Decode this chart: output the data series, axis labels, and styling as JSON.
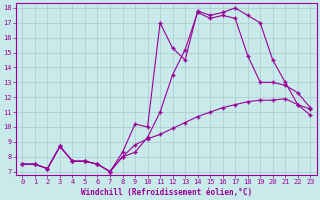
{
  "xlabel": "Windchill (Refroidissement éolien,°C)",
  "background_color": "#c8eaea",
  "grid_color": "#b0d0d0",
  "line_color": "#990099",
  "xlim": [
    -0.5,
    23.5
  ],
  "ylim": [
    6.8,
    18.3
  ],
  "xticks": [
    0,
    1,
    2,
    3,
    4,
    5,
    6,
    7,
    8,
    9,
    10,
    11,
    12,
    13,
    14,
    15,
    16,
    17,
    18,
    19,
    20,
    21,
    22,
    23
  ],
  "yticks": [
    7,
    8,
    9,
    10,
    11,
    12,
    13,
    14,
    15,
    16,
    17,
    18
  ],
  "line1_x": [
    0,
    1,
    2,
    3,
    4,
    5,
    6,
    7,
    8,
    9,
    10,
    11,
    12,
    13,
    14,
    15,
    16,
    17,
    18,
    19,
    20,
    21,
    22,
    23
  ],
  "line1_y": [
    7.5,
    7.5,
    7.2,
    8.7,
    7.7,
    7.7,
    7.5,
    7.0,
    8.0,
    8.8,
    9.2,
    9.5,
    9.9,
    10.3,
    10.7,
    11.0,
    11.3,
    11.5,
    11.7,
    11.8,
    11.8,
    11.9,
    11.5,
    11.2
  ],
  "line2_x": [
    0,
    1,
    2,
    3,
    4,
    5,
    6,
    7,
    8,
    9,
    10,
    11,
    12,
    13,
    14,
    15,
    16,
    17,
    18,
    19,
    20,
    21,
    22,
    23
  ],
  "line2_y": [
    7.5,
    7.5,
    7.2,
    8.7,
    7.7,
    7.7,
    7.5,
    7.0,
    8.3,
    10.2,
    10.0,
    17.0,
    15.3,
    14.5,
    17.8,
    17.5,
    17.7,
    18.0,
    17.5,
    17.0,
    14.5,
    13.0,
    11.5,
    10.8
  ],
  "line3_x": [
    0,
    1,
    2,
    3,
    4,
    5,
    6,
    7,
    8,
    9,
    10,
    11,
    12,
    13,
    14,
    15,
    16,
    17,
    18,
    19,
    20,
    21,
    22,
    23
  ],
  "line3_y": [
    7.5,
    7.5,
    7.2,
    8.7,
    7.7,
    7.7,
    7.5,
    7.0,
    8.0,
    8.3,
    9.3,
    11.0,
    13.5,
    15.2,
    17.7,
    17.3,
    17.5,
    17.3,
    14.8,
    13.0,
    13.0,
    12.8,
    12.3,
    11.3
  ]
}
